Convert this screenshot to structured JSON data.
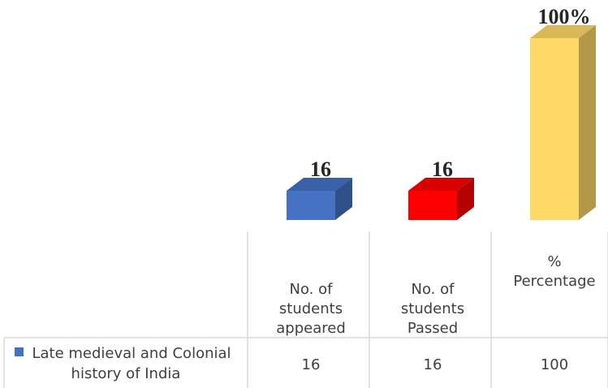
{
  "chart_data": {
    "type": "bar",
    "style": "3d-column-with-data-table",
    "categories": [
      [
        "No. of",
        "students",
        "appeared"
      ],
      [
        "No. of",
        "students",
        "Passed"
      ],
      [
        "%",
        "Percentage"
      ]
    ],
    "series": [
      {
        "name": "Late medieval and Colonial history of India",
        "name_lines": [
          "Late medieval and Colonial",
          "history of India"
        ],
        "values": [
          16,
          16,
          100
        ],
        "table_values": [
          "16",
          "16",
          "100"
        ],
        "data_labels": [
          "16",
          "16",
          "100%"
        ],
        "colors": [
          "#4472c4",
          "#ff0000",
          "#ffd966"
        ],
        "legend_color": "#4472c4"
      }
    ],
    "ylim": [
      0,
      100
    ],
    "grid": false,
    "legend": "in-data-table"
  }
}
